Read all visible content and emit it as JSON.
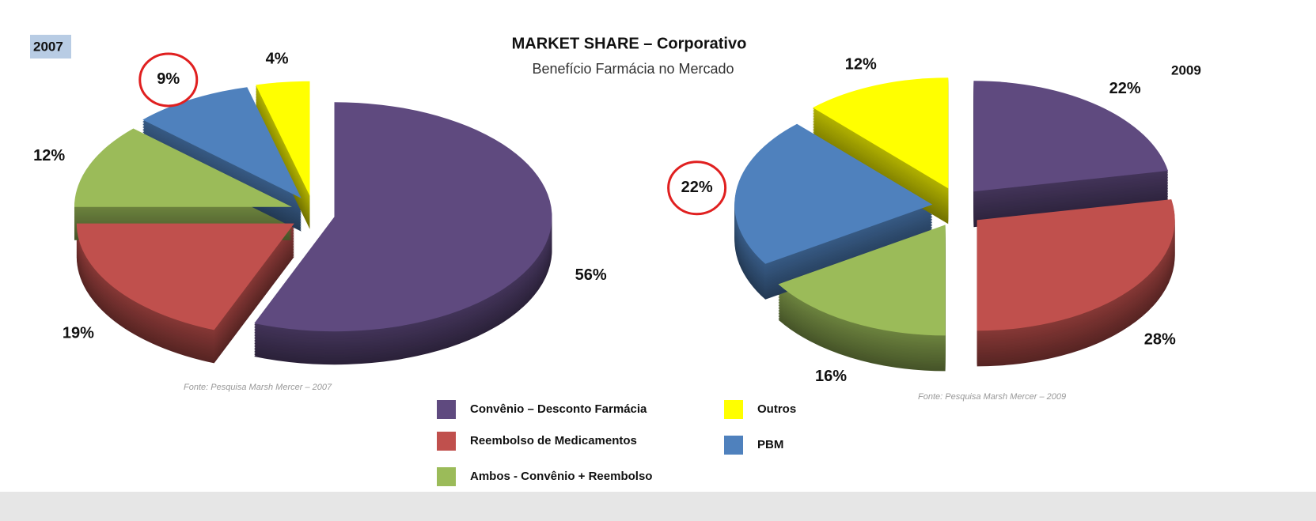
{
  "title": "MARKET SHARE – Corporativo",
  "subtitle": "Benefício Farmácia no Mercado",
  "chart_data": [
    {
      "type": "pie",
      "label": "2007",
      "source": "Fonte: Pesquisa Marsh Mercer – 2007",
      "categories": [
        "Convênio – Desconto Farmácia",
        "Reembolso de Medicamentos",
        "Ambos - Convênio + Reembolso",
        "PBM",
        "Outros"
      ],
      "values": [
        56,
        19,
        12,
        9,
        4
      ],
      "value_labels": [
        "56%",
        "19%",
        "12%",
        "9%",
        "4%"
      ],
      "colors": [
        "#5f4a7f",
        "#c0504d",
        "#9bbb59",
        "#4f81bd",
        "#ffff00"
      ]
    },
    {
      "type": "pie",
      "label": "2009",
      "source": "Fonte: Pesquisa Marsh Mercer – 2009",
      "categories": [
        "Convênio – Desconto Farmácia",
        "Reembolso de Medicamentos",
        "Ambos - Convênio + Reembolso",
        "PBM",
        "Outros"
      ],
      "values": [
        22,
        28,
        16,
        22,
        12
      ],
      "value_labels": [
        "22%",
        "28%",
        "16%",
        "22%",
        "12%"
      ],
      "colors": [
        "#5f4a7f",
        "#c0504d",
        "#9bbb59",
        "#4f81bd",
        "#ffff00"
      ]
    }
  ]
}
